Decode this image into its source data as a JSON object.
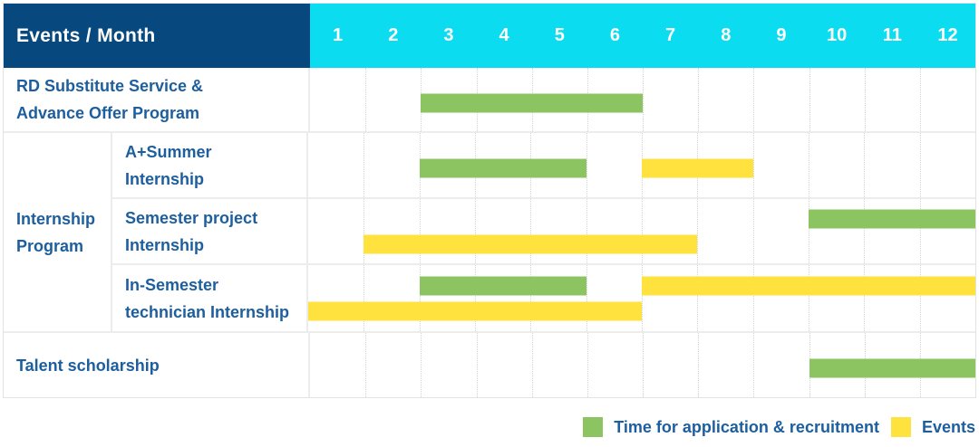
{
  "table": {
    "header": {
      "title": "Events / Month",
      "months": [
        "1",
        "2",
        "3",
        "4",
        "5",
        "6",
        "7",
        "8",
        "9",
        "10",
        "11",
        "12"
      ]
    },
    "rows": [
      {
        "label_lines": [
          "RD Substitute Service &",
          "Advance Offer Program"
        ],
        "bars": [
          {
            "color": "green",
            "start_month": 3,
            "end_month": 6,
            "lane": "single"
          }
        ]
      },
      {
        "label_lines": [
          "Internship",
          "Program"
        ],
        "subrows": [
          {
            "label_lines": [
              "A+Summer",
              "Internship"
            ],
            "bars": [
              {
                "color": "green",
                "start_month": 3,
                "end_month": 5,
                "lane": "single"
              },
              {
                "color": "yellow",
                "start_month": 7,
                "end_month": 8,
                "lane": "single"
              }
            ]
          },
          {
            "label_lines": [
              "Semester project",
              "Internship"
            ],
            "bars": [
              {
                "color": "green",
                "start_month": 10,
                "end_month": 12,
                "lane": "top"
              },
              {
                "color": "yellow",
                "start_month": 2,
                "end_month": 7,
                "lane": "bottom"
              }
            ]
          },
          {
            "label_lines": [
              "In-Semester",
              "technician Internship"
            ],
            "bars": [
              {
                "color": "green",
                "start_month": 3,
                "end_month": 5,
                "lane": "top"
              },
              {
                "color": "yellow",
                "start_month": 7,
                "end_month": 12,
                "lane": "top"
              },
              {
                "color": "yellow",
                "start_month": 1,
                "end_month": 6,
                "lane": "bottom"
              }
            ]
          }
        ]
      },
      {
        "label_lines": [
          "Talent scholarship"
        ],
        "bars": [
          {
            "color": "green",
            "start_month": 10,
            "end_month": 12,
            "lane": "single"
          }
        ]
      }
    ]
  },
  "legend": {
    "items": [
      {
        "color": "green",
        "label": "Time for application & recruitment"
      },
      {
        "color": "yellow",
        "label": "Events"
      }
    ]
  },
  "colors": {
    "navy": "#07497E",
    "cyan": "#0BDCF0",
    "green": "#8CC462",
    "yellow": "#FFE23E",
    "label_text": "#1D5E9E"
  },
  "chart_data": {
    "type": "bar",
    "variant": "gantt",
    "title": "Events / Month",
    "xlabel": "Month",
    "x_ticks": [
      "1",
      "2",
      "3",
      "4",
      "5",
      "6",
      "7",
      "8",
      "9",
      "10",
      "11",
      "12"
    ],
    "x_range": [
      1,
      12
    ],
    "grid": "vertical-dotted",
    "legend_position": "bottom-right",
    "legend_entries": [
      "Time for application & recruitment",
      "Events"
    ],
    "tasks": [
      {
        "name": "RD Substitute Service & Advance Offer Program",
        "group": null,
        "spans": [
          {
            "category": "Time for application & recruitment",
            "start_month": 3,
            "end_month": 6
          }
        ]
      },
      {
        "name": "A+Summer Internship",
        "group": "Internship Program",
        "spans": [
          {
            "category": "Time for application & recruitment",
            "start_month": 3,
            "end_month": 5
          },
          {
            "category": "Events",
            "start_month": 7,
            "end_month": 8
          }
        ]
      },
      {
        "name": "Semester project Internship",
        "group": "Internship Program",
        "spans": [
          {
            "category": "Time for application & recruitment",
            "start_month": 10,
            "end_month": 12
          },
          {
            "category": "Events",
            "start_month": 2,
            "end_month": 7
          }
        ]
      },
      {
        "name": "In-Semester technician Internship",
        "group": "Internship Program",
        "spans": [
          {
            "category": "Time for application & recruitment",
            "start_month": 3,
            "end_month": 5
          },
          {
            "category": "Events",
            "start_month": 7,
            "end_month": 12
          },
          {
            "category": "Events",
            "start_month": 1,
            "end_month": 6
          }
        ]
      },
      {
        "name": "Talent scholarship",
        "group": null,
        "spans": [
          {
            "category": "Time for application & recruitment",
            "start_month": 10,
            "end_month": 12
          }
        ]
      }
    ]
  }
}
